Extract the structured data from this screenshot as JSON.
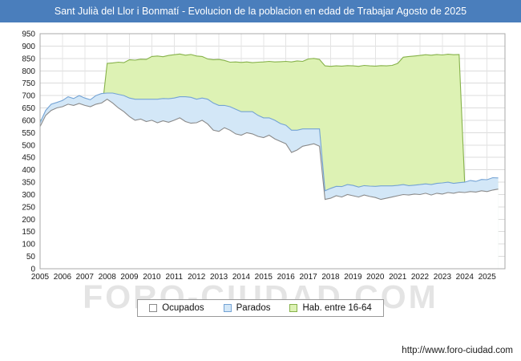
{
  "header": {
    "title": "Sant Julià del Llor i Bonmatí - Evolucion de la poblacion en edad de Trabajar Agosto de 2025",
    "background": "#4a7ebc"
  },
  "watermark": {
    "text": "FORO-CIUDAD.COM"
  },
  "footer": {
    "url": "http://www.foro-ciudad.com"
  },
  "legend": {
    "items": [
      {
        "label": "Ocupados",
        "fill": "#ffffff",
        "stroke": "#8a8a8a"
      },
      {
        "label": "Parados",
        "fill": "#d3e7f7",
        "stroke": "#74a3d4"
      },
      {
        "label": "Hab. entre 16-64",
        "fill": "#ddf2b4",
        "stroke": "#86b24a"
      }
    ]
  },
  "chart_data": {
    "type": "area",
    "title": "Sant Julià del Llor i Bonmatí - Evolucion de la poblacion en edad de Trabajar Agosto de 2025",
    "xlabel": "",
    "ylabel": "",
    "x_start": 2005.0,
    "x_step": 0.25,
    "xlim": [
      2005.0,
      2025.8
    ],
    "ylim": [
      0,
      950
    ],
    "y_tick_step": 50,
    "x_ticks": [
      2005,
      2006,
      2007,
      2008,
      2009,
      2010,
      2011,
      2012,
      2013,
      2014,
      2015,
      2016,
      2017,
      2018,
      2019,
      2020,
      2021,
      2022,
      2023,
      2024,
      2025
    ],
    "grid": true,
    "legend_position": "bottom",
    "paint_order": [
      "Hab. entre 16-64",
      "Parados",
      "Ocupados"
    ],
    "stacking_note": "Parados is drawn stacked on top of Ocupados; Hab. entre 16-64 is the background area",
    "series": [
      {
        "name": "Ocupados",
        "id": "ocupados",
        "fill": "#ffffff",
        "stroke": "#8a8a8a",
        "values": [
          575,
          620,
          640,
          650,
          655,
          665,
          660,
          668,
          660,
          655,
          665,
          670,
          685,
          670,
          650,
          635,
          615,
          600,
          605,
          595,
          600,
          590,
          598,
          592,
          600,
          610,
          595,
          588,
          590,
          600,
          585,
          560,
          555,
          570,
          560,
          545,
          540,
          550,
          545,
          535,
          530,
          540,
          525,
          515,
          505,
          470,
          480,
          495,
          500,
          505,
          495,
          280,
          285,
          295,
          290,
          300,
          295,
          290,
          298,
          292,
          288,
          280,
          285,
          290,
          295,
          300,
          298,
          302,
          300,
          305,
          298,
          305,
          302,
          308,
          305,
          310,
          308,
          312,
          310,
          315,
          312,
          318,
          322
        ]
      },
      {
        "name": "Parados",
        "id": "parados",
        "fill": "#d3e7f7",
        "stroke": "#74a3d4",
        "values": [
          15,
          20,
          25,
          22,
          25,
          30,
          28,
          32,
          30,
          28,
          35,
          38,
          25,
          40,
          55,
          65,
          75,
          85,
          80,
          90,
          85,
          95,
          90,
          95,
          90,
          85,
          100,
          105,
          95,
          90,
          100,
          110,
          105,
          90,
          95,
          100,
          95,
          85,
          90,
          85,
          80,
          70,
          75,
          72,
          75,
          90,
          80,
          70,
          65,
          60,
          70,
          35,
          40,
          38,
          42,
          40,
          42,
          40,
          38,
          42,
          45,
          55,
          50,
          45,
          42,
          40,
          38,
          36,
          40,
          38,
          42,
          40,
          45,
          42,
          40,
          38,
          42,
          45,
          43,
          46,
          48,
          50,
          45
        ]
      },
      {
        "name": "Hab. entre 16-64",
        "id": "hab-16-64",
        "fill": "#ddf2b4",
        "stroke": "#86b24a",
        "values": [
          600,
          610,
          615,
          612,
          615,
          618,
          616,
          620,
          618,
          622,
          625,
          628,
          830,
          832,
          835,
          833,
          845,
          843,
          847,
          846,
          858,
          860,
          857,
          862,
          865,
          868,
          863,
          866,
          860,
          858,
          848,
          845,
          846,
          842,
          835,
          836,
          834,
          836,
          833,
          835,
          836,
          838,
          836,
          837,
          838,
          836,
          840,
          838,
          848,
          850,
          846,
          820,
          818,
          820,
          819,
          821,
          820,
          818,
          822,
          820,
          819,
          821,
          820,
          822,
          830,
          855,
          858,
          860,
          862,
          865,
          863,
          866,
          864,
          867,
          865,
          866,
          340,
          338,
          342,
          344,
          345,
          348,
          350
        ]
      }
    ]
  }
}
